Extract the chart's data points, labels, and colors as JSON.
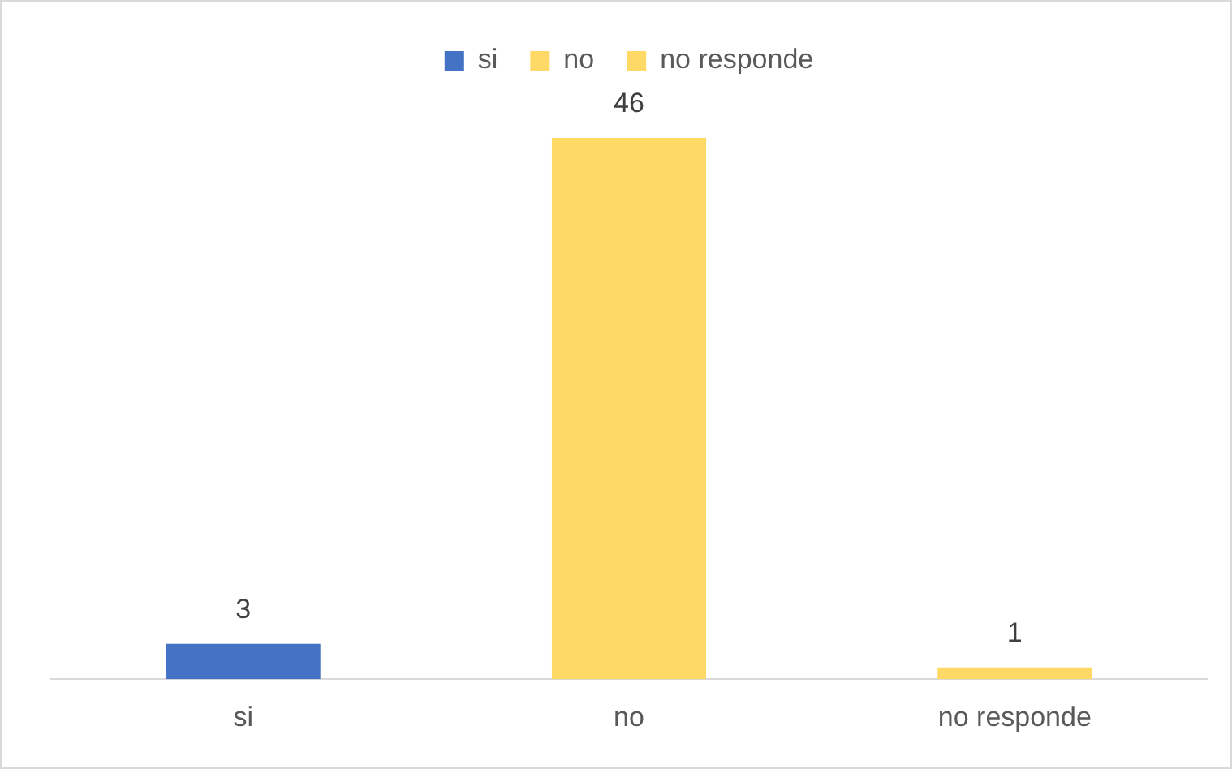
{
  "chart_data": {
    "type": "bar",
    "categories": [
      "si",
      "no",
      "no responde"
    ],
    "series": [
      {
        "name": "si",
        "color": "#4472c4",
        "values": [
          3,
          null,
          null
        ]
      },
      {
        "name": "no",
        "color": "#ffd966",
        "values": [
          null,
          46,
          null
        ]
      },
      {
        "name": "no responde",
        "color": "#ffd966",
        "values": [
          null,
          null,
          1
        ]
      }
    ],
    "data_labels": true,
    "legend": "top",
    "grid": false,
    "tick_labels": "x"
  }
}
